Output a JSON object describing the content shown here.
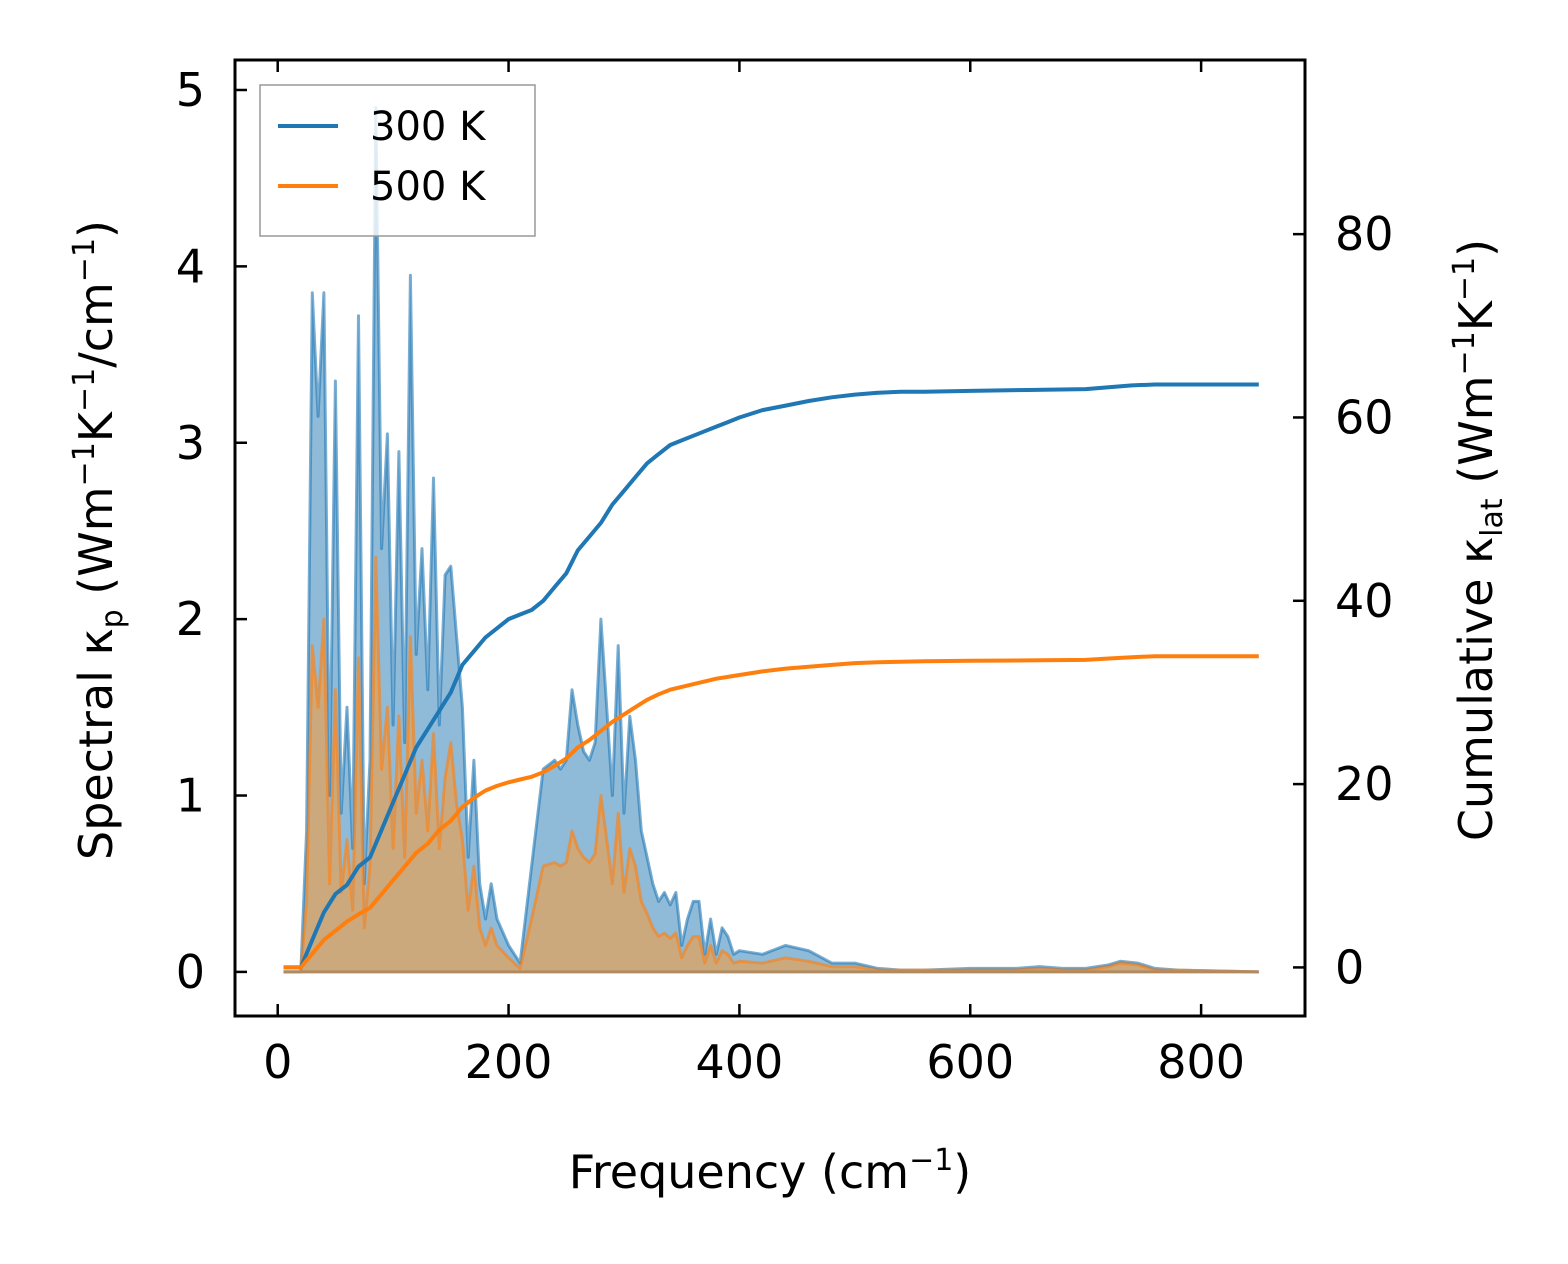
{
  "chart_data": {
    "type": "line",
    "x_label": {
      "main": "Frequency (cm",
      "sup": "−1",
      "end": ")"
    },
    "y_left_label": {
      "p1": "Spectral κ",
      "sub": "p",
      "p2": " (Wm",
      "sup1": "−1",
      "p3": "K",
      "sup2": "−1",
      "p4": "/cm",
      "sup3": "−1",
      "p5": ")"
    },
    "y_right_label": {
      "p1": "Cumulative κ",
      "sub": "lat",
      "p2": " (Wm",
      "sup1": "−1",
      "p3": "K",
      "sup2": "−1",
      "p4": ")"
    },
    "xlim": [
      -37,
      890
    ],
    "ylim_left": [
      -0.25,
      5.17
    ],
    "ylim_right": [
      -5.3,
      99.0
    ],
    "x_ticks": [
      0,
      200,
      400,
      600,
      800
    ],
    "x_tick_labels": [
      "0",
      "200",
      "400",
      "600",
      "800"
    ],
    "y_left_ticks": [
      0,
      1,
      2,
      3,
      4,
      5
    ],
    "y_left_tick_labels": [
      "0",
      "1",
      "2",
      "3",
      "4",
      "5"
    ],
    "y_right_ticks": [
      0,
      20,
      40,
      60,
      80
    ],
    "y_right_tick_labels": [
      "0",
      "20",
      "40",
      "60",
      "80"
    ],
    "legend": {
      "position": "top-left",
      "entries": [
        "300 K",
        "500 K"
      ]
    },
    "colors": {
      "300K": "#1f77b4",
      "500K": "#ff7f0e",
      "fill300": "#1f77b4",
      "fill500": "#e0a25e"
    },
    "spectral": {
      "300K": [
        [
          5,
          0
        ],
        [
          20,
          0
        ],
        [
          25,
          0.8
        ],
        [
          30,
          3.85
        ],
        [
          35,
          3.15
        ],
        [
          40,
          3.85
        ],
        [
          45,
          1.0
        ],
        [
          50,
          3.35
        ],
        [
          55,
          0.9
        ],
        [
          60,
          1.5
        ],
        [
          65,
          0.7
        ],
        [
          70,
          3.72
        ],
        [
          75,
          0.5
        ],
        [
          80,
          1.2
        ],
        [
          85,
          4.9
        ],
        [
          90,
          2.4
        ],
        [
          95,
          3.05
        ],
        [
          100,
          1.4
        ],
        [
          105,
          2.95
        ],
        [
          110,
          1.3
        ],
        [
          115,
          3.95
        ],
        [
          120,
          1.8
        ],
        [
          125,
          2.4
        ],
        [
          130,
          1.6
        ],
        [
          135,
          2.8
        ],
        [
          140,
          1.4
        ],
        [
          145,
          2.25
        ],
        [
          150,
          2.3
        ],
        [
          155,
          1.9
        ],
        [
          160,
          1.5
        ],
        [
          165,
          0.65
        ],
        [
          170,
          1.2
        ],
        [
          175,
          0.5
        ],
        [
          180,
          0.3
        ],
        [
          185,
          0.5
        ],
        [
          190,
          0.3
        ],
        [
          200,
          0.15
        ],
        [
          210,
          0.05
        ],
        [
          220,
          0.6
        ],
        [
          230,
          1.15
        ],
        [
          240,
          1.2
        ],
        [
          245,
          1.15
        ],
        [
          250,
          1.2
        ],
        [
          255,
          1.6
        ],
        [
          260,
          1.4
        ],
        [
          265,
          1.25
        ],
        [
          270,
          1.2
        ],
        [
          275,
          1.3
        ],
        [
          280,
          2.0
        ],
        [
          285,
          1.5
        ],
        [
          290,
          1.0
        ],
        [
          295,
          1.85
        ],
        [
          300,
          0.9
        ],
        [
          305,
          1.45
        ],
        [
          310,
          1.2
        ],
        [
          315,
          0.8
        ],
        [
          320,
          0.65
        ],
        [
          325,
          0.5
        ],
        [
          330,
          0.4
        ],
        [
          335,
          0.45
        ],
        [
          340,
          0.38
        ],
        [
          345,
          0.45
        ],
        [
          350,
          0.15
        ],
        [
          355,
          0.3
        ],
        [
          360,
          0.4
        ],
        [
          365,
          0.4
        ],
        [
          370,
          0.1
        ],
        [
          375,
          0.3
        ],
        [
          380,
          0.1
        ],
        [
          385,
          0.25
        ],
        [
          390,
          0.2
        ],
        [
          395,
          0.1
        ],
        [
          400,
          0.12
        ],
        [
          420,
          0.1
        ],
        [
          440,
          0.15
        ],
        [
          460,
          0.12
        ],
        [
          480,
          0.05
        ],
        [
          500,
          0.05
        ],
        [
          520,
          0.02
        ],
        [
          540,
          0.01
        ],
        [
          560,
          0.01
        ],
        [
          600,
          0.02
        ],
        [
          640,
          0.02
        ],
        [
          660,
          0.03
        ],
        [
          680,
          0.02
        ],
        [
          700,
          0.02
        ],
        [
          720,
          0.04
        ],
        [
          730,
          0.06
        ],
        [
          745,
          0.05
        ],
        [
          760,
          0.02
        ],
        [
          780,
          0.01
        ],
        [
          850,
          0.0
        ]
      ],
      "500K": [
        [
          5,
          0
        ],
        [
          20,
          0
        ],
        [
          25,
          0.4
        ],
        [
          30,
          1.85
        ],
        [
          35,
          1.5
        ],
        [
          40,
          2.0
        ],
        [
          45,
          0.5
        ],
        [
          50,
          1.6
        ],
        [
          55,
          0.45
        ],
        [
          60,
          0.75
        ],
        [
          65,
          0.35
        ],
        [
          70,
          1.78
        ],
        [
          75,
          0.25
        ],
        [
          80,
          0.6
        ],
        [
          85,
          2.35
        ],
        [
          90,
          1.15
        ],
        [
          95,
          1.5
        ],
        [
          100,
          0.7
        ],
        [
          105,
          1.45
        ],
        [
          110,
          0.65
        ],
        [
          115,
          1.9
        ],
        [
          120,
          0.9
        ],
        [
          125,
          1.2
        ],
        [
          130,
          0.8
        ],
        [
          135,
          1.35
        ],
        [
          140,
          0.7
        ],
        [
          145,
          1.1
        ],
        [
          150,
          1.3
        ],
        [
          155,
          0.95
        ],
        [
          160,
          0.75
        ],
        [
          165,
          0.35
        ],
        [
          170,
          0.6
        ],
        [
          175,
          0.25
        ],
        [
          180,
          0.15
        ],
        [
          185,
          0.25
        ],
        [
          190,
          0.15
        ],
        [
          200,
          0.08
        ],
        [
          210,
          0.02
        ],
        [
          220,
          0.3
        ],
        [
          230,
          0.6
        ],
        [
          240,
          0.62
        ],
        [
          245,
          0.6
        ],
        [
          250,
          0.62
        ],
        [
          255,
          0.8
        ],
        [
          260,
          0.7
        ],
        [
          265,
          0.65
        ],
        [
          270,
          0.62
        ],
        [
          275,
          0.67
        ],
        [
          280,
          1.0
        ],
        [
          285,
          0.75
        ],
        [
          290,
          0.5
        ],
        [
          295,
          0.9
        ],
        [
          300,
          0.45
        ],
        [
          305,
          0.7
        ],
        [
          310,
          0.6
        ],
        [
          315,
          0.4
        ],
        [
          320,
          0.33
        ],
        [
          325,
          0.25
        ],
        [
          330,
          0.2
        ],
        [
          335,
          0.22
        ],
        [
          340,
          0.19
        ],
        [
          345,
          0.22
        ],
        [
          350,
          0.08
        ],
        [
          355,
          0.15
        ],
        [
          360,
          0.2
        ],
        [
          365,
          0.2
        ],
        [
          370,
          0.05
        ],
        [
          375,
          0.15
        ],
        [
          380,
          0.05
        ],
        [
          385,
          0.12
        ],
        [
          390,
          0.1
        ],
        [
          395,
          0.05
        ],
        [
          400,
          0.06
        ],
        [
          420,
          0.05
        ],
        [
          440,
          0.08
        ],
        [
          460,
          0.06
        ],
        [
          480,
          0.03
        ],
        [
          500,
          0.03
        ],
        [
          520,
          0.01
        ],
        [
          540,
          0.01
        ],
        [
          560,
          0.01
        ],
        [
          600,
          0.01
        ],
        [
          640,
          0.01
        ],
        [
          660,
          0.02
        ],
        [
          680,
          0.01
        ],
        [
          700,
          0.01
        ],
        [
          720,
          0.03
        ],
        [
          730,
          0.05
        ],
        [
          745,
          0.04
        ],
        [
          760,
          0.01
        ],
        [
          780,
          0.01
        ],
        [
          850,
          0.0
        ]
      ]
    },
    "cumulative": {
      "300K": [
        [
          5,
          0
        ],
        [
          20,
          0
        ],
        [
          30,
          3
        ],
        [
          40,
          6
        ],
        [
          50,
          8
        ],
        [
          60,
          9
        ],
        [
          70,
          11
        ],
        [
          80,
          12
        ],
        [
          90,
          15
        ],
        [
          100,
          18
        ],
        [
          110,
          21
        ],
        [
          120,
          24
        ],
        [
          130,
          26
        ],
        [
          140,
          28
        ],
        [
          150,
          30
        ],
        [
          160,
          33
        ],
        [
          170,
          34.5
        ],
        [
          180,
          36
        ],
        [
          190,
          37
        ],
        [
          200,
          38
        ],
        [
          210,
          38.5
        ],
        [
          220,
          39
        ],
        [
          230,
          40
        ],
        [
          240,
          41.5
        ],
        [
          250,
          43
        ],
        [
          260,
          45.5
        ],
        [
          270,
          47
        ],
        [
          280,
          48.5
        ],
        [
          290,
          50.5
        ],
        [
          300,
          52
        ],
        [
          310,
          53.5
        ],
        [
          320,
          55
        ],
        [
          330,
          56
        ],
        [
          340,
          57
        ],
        [
          350,
          57.5
        ],
        [
          360,
          58
        ],
        [
          370,
          58.5
        ],
        [
          380,
          59
        ],
        [
          390,
          59.5
        ],
        [
          400,
          60
        ],
        [
          420,
          60.8
        ],
        [
          440,
          61.3
        ],
        [
          460,
          61.8
        ],
        [
          480,
          62.2
        ],
        [
          500,
          62.5
        ],
        [
          520,
          62.7
        ],
        [
          540,
          62.8
        ],
        [
          560,
          62.8
        ],
        [
          600,
          62.9
        ],
        [
          650,
          63.0
        ],
        [
          700,
          63.1
        ],
        [
          720,
          63.3
        ],
        [
          740,
          63.5
        ],
        [
          760,
          63.6
        ],
        [
          800,
          63.6
        ],
        [
          850,
          63.6
        ]
      ],
      "500K": [
        [
          5,
          0
        ],
        [
          20,
          0
        ],
        [
          30,
          1.5
        ],
        [
          40,
          3
        ],
        [
          50,
          4
        ],
        [
          60,
          5
        ],
        [
          70,
          5.8
        ],
        [
          80,
          6.5
        ],
        [
          90,
          8
        ],
        [
          100,
          9.5
        ],
        [
          110,
          11
        ],
        [
          120,
          12.5
        ],
        [
          130,
          13.5
        ],
        [
          140,
          15
        ],
        [
          150,
          16
        ],
        [
          160,
          17.5
        ],
        [
          170,
          18.5
        ],
        [
          180,
          19.3
        ],
        [
          190,
          19.8
        ],
        [
          200,
          20.2
        ],
        [
          210,
          20.5
        ],
        [
          220,
          20.8
        ],
        [
          230,
          21.3
        ],
        [
          240,
          22
        ],
        [
          250,
          22.8
        ],
        [
          260,
          24
        ],
        [
          270,
          24.8
        ],
        [
          280,
          25.8
        ],
        [
          290,
          26.8
        ],
        [
          300,
          27.6
        ],
        [
          310,
          28.4
        ],
        [
          320,
          29.2
        ],
        [
          330,
          29.8
        ],
        [
          340,
          30.3
        ],
        [
          350,
          30.6
        ],
        [
          360,
          30.9
        ],
        [
          370,
          31.2
        ],
        [
          380,
          31.5
        ],
        [
          390,
          31.7
        ],
        [
          400,
          31.9
        ],
        [
          420,
          32.3
        ],
        [
          440,
          32.6
        ],
        [
          460,
          32.8
        ],
        [
          480,
          33.0
        ],
        [
          500,
          33.2
        ],
        [
          520,
          33.3
        ],
        [
          540,
          33.35
        ],
        [
          560,
          33.4
        ],
        [
          600,
          33.45
        ],
        [
          650,
          33.5
        ],
        [
          700,
          33.55
        ],
        [
          720,
          33.7
        ],
        [
          740,
          33.85
        ],
        [
          760,
          33.95
        ],
        [
          800,
          33.95
        ],
        [
          850,
          33.95
        ]
      ]
    }
  }
}
